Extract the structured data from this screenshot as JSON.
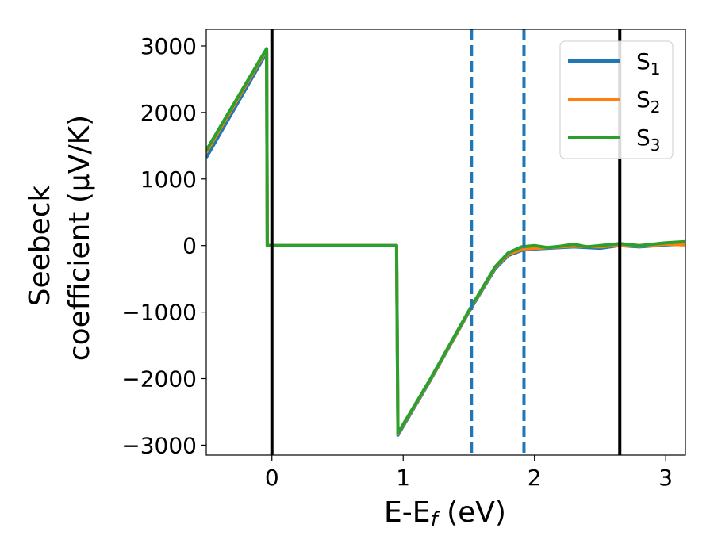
{
  "chart_data": {
    "type": "line",
    "xlabel": "E-E",
    "xlabel_sub": "f",
    "xlabel_unit": " (eV)",
    "ylabel_line1": "Seebeck",
    "ylabel_line2": "coefficient  (μV/K)",
    "xlim": [
      -0.5,
      3.15
    ],
    "ylim": [
      -3150,
      3250
    ],
    "x_ticks": [
      0,
      1,
      2,
      3
    ],
    "x_tick_labels": [
      "0",
      "1",
      "2",
      "3"
    ],
    "y_ticks": [
      3000,
      2000,
      1000,
      0,
      -1000,
      -2000,
      -3000
    ],
    "y_tick_labels": [
      "3000",
      "2000",
      "1000",
      "0",
      "−1000",
      "−2000",
      "−3000"
    ],
    "legend_position": "top-right",
    "vertical_lines": [
      {
        "x": 0.0,
        "color": "#000000",
        "style": "solid"
      },
      {
        "x": 1.52,
        "color": "#1f77b4",
        "style": "dashed"
      },
      {
        "x": 1.92,
        "color": "#1f77b4",
        "style": "dashed"
      },
      {
        "x": 2.65,
        "color": "#000000",
        "style": "solid"
      }
    ],
    "series": [
      {
        "name": "S",
        "name_sub": "1",
        "color": "#1f77b4",
        "points": [
          [
            -0.5,
            1320
          ],
          [
            -0.04,
            2900
          ],
          [
            -0.035,
            0
          ],
          [
            0.95,
            0
          ],
          [
            0.96,
            -2850
          ],
          [
            1.2,
            -2050
          ],
          [
            1.5,
            -1000
          ],
          [
            1.7,
            -350
          ],
          [
            1.8,
            -150
          ],
          [
            1.92,
            -60
          ],
          [
            2.1,
            -40
          ],
          [
            2.3,
            -20
          ],
          [
            2.5,
            -40
          ],
          [
            2.65,
            0
          ],
          [
            2.8,
            -20
          ],
          [
            3.0,
            10
          ],
          [
            3.15,
            20
          ]
        ]
      },
      {
        "name": "S",
        "name_sub": "2",
        "color": "#ff7f0e",
        "points": [
          [
            -0.5,
            1400
          ],
          [
            -0.04,
            2940
          ],
          [
            -0.035,
            0
          ],
          [
            0.95,
            0
          ],
          [
            0.96,
            -2830
          ],
          [
            1.2,
            -2040
          ],
          [
            1.5,
            -990
          ],
          [
            1.7,
            -330
          ],
          [
            1.8,
            -130
          ],
          [
            1.92,
            -50
          ],
          [
            2.1,
            -30
          ],
          [
            2.3,
            -10
          ],
          [
            2.5,
            -20
          ],
          [
            2.65,
            10
          ],
          [
            2.8,
            -10
          ],
          [
            3.0,
            20
          ],
          [
            3.15,
            10
          ]
        ]
      },
      {
        "name": "S",
        "name_sub": "3",
        "color": "#2ca02c",
        "points": [
          [
            -0.5,
            1430
          ],
          [
            -0.04,
            2960
          ],
          [
            -0.035,
            0
          ],
          [
            0.95,
            0
          ],
          [
            0.96,
            -2820
          ],
          [
            1.2,
            -2030
          ],
          [
            1.5,
            -980
          ],
          [
            1.7,
            -320
          ],
          [
            1.8,
            -110
          ],
          [
            1.9,
            -20
          ],
          [
            2.0,
            0
          ],
          [
            2.1,
            -30
          ],
          [
            2.2,
            -10
          ],
          [
            2.3,
            20
          ],
          [
            2.4,
            -20
          ],
          [
            2.5,
            0
          ],
          [
            2.65,
            30
          ],
          [
            2.8,
            0
          ],
          [
            3.0,
            40
          ],
          [
            3.15,
            60
          ]
        ]
      }
    ]
  }
}
